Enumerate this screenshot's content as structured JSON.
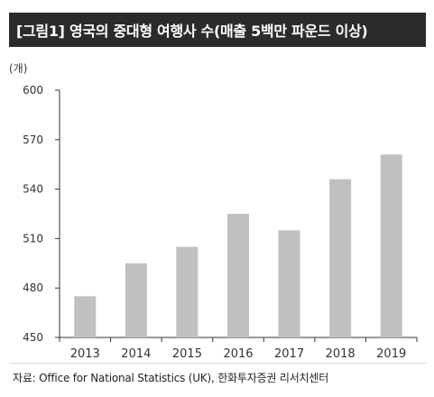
{
  "header": {
    "title": "[그림1] 영국의 중대형 여행사 수(매출 5백만 파운드 이상)"
  },
  "chart_data": {
    "type": "bar",
    "categories": [
      "2013",
      "2014",
      "2015",
      "2016",
      "2017",
      "2018",
      "2019"
    ],
    "values": [
      475,
      495,
      505,
      525,
      515,
      546,
      561
    ],
    "unit_label": "(개)",
    "ylim": [
      450,
      600
    ],
    "yticks": [
      450,
      480,
      510,
      540,
      570,
      600
    ],
    "grid": false,
    "bar_color": "#c0c0c0",
    "axis_color": "#333333"
  },
  "footer": {
    "source": "자료: Office for National Statistics (UK), 한화투자증권 리서치센터"
  }
}
